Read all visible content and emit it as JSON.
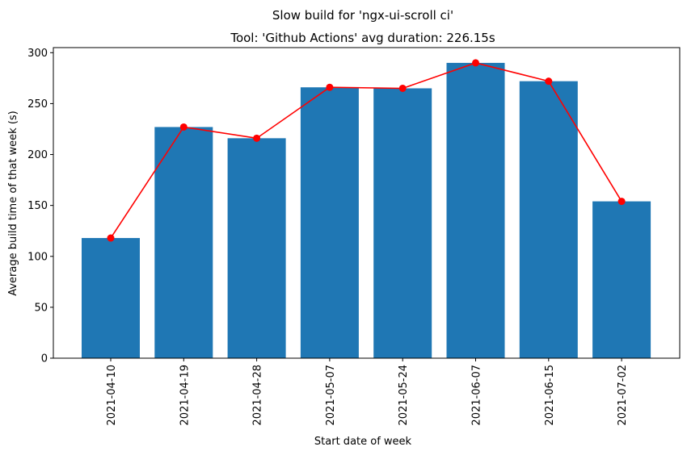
{
  "chart_data": {
    "type": "bar",
    "title": "Slow build for 'ngx-ui-scroll ci'",
    "subtitle": "Tool: 'Github Actions' avg duration: 226.15s",
    "xlabel": "Start date of week",
    "ylabel": "Average build time of that week (s)",
    "categories": [
      "2021-04-10",
      "2021-04-19",
      "2021-04-28",
      "2021-05-07",
      "2021-05-24",
      "2021-06-07",
      "2021-06-15",
      "2021-07-02"
    ],
    "values": [
      118,
      227,
      216,
      266,
      265,
      290,
      272,
      154
    ],
    "line_overlay": true,
    "ylim": [
      0,
      305
    ],
    "yticks": [
      0,
      50,
      100,
      150,
      200,
      250,
      300
    ],
    "bar_color": "#1f77b4",
    "line_color": "#ff0000",
    "grid": false
  }
}
